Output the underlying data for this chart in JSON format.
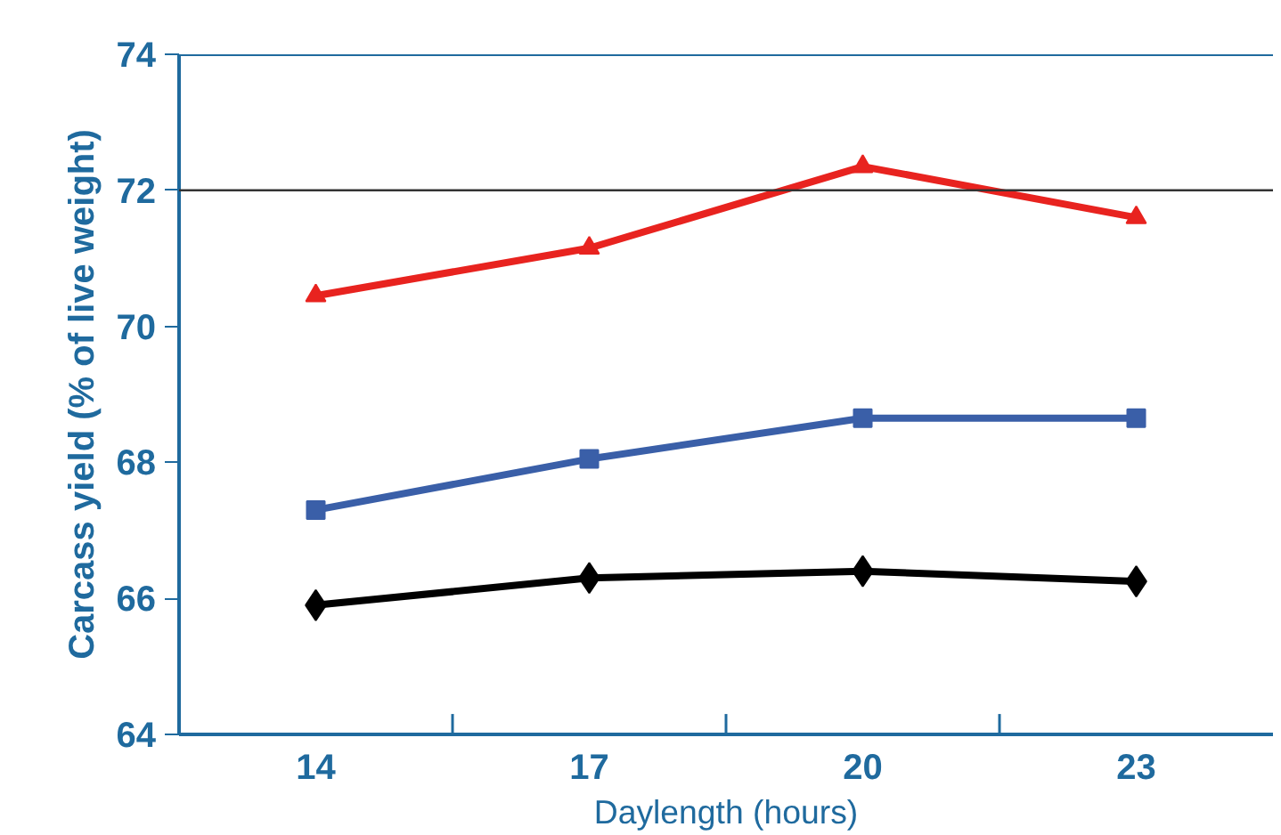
{
  "chart_data": {
    "type": "line",
    "xlabel": "Daylength (hours)",
    "ylabel": "Carcass yield (% of live weight)",
    "categories": [
      "14",
      "17",
      "20",
      "23"
    ],
    "ylim": [
      64,
      74
    ],
    "yticks": [
      64,
      66,
      68,
      70,
      72,
      74
    ],
    "grid": false,
    "line_style": "solid",
    "ref_lines": [
      {
        "axis": "y",
        "value": 72,
        "color": "#333333"
      }
    ],
    "series": [
      {
        "color": "#e8231f",
        "marker": "triangle",
        "values": [
          70.45,
          71.15,
          72.35,
          71.6
        ]
      },
      {
        "color": "#3a5fa8",
        "marker": "square",
        "values": [
          67.3,
          68.05,
          68.65,
          68.65
        ]
      },
      {
        "color": "#000000",
        "marker": "diamond",
        "values": [
          65.9,
          66.3,
          66.4,
          66.25
        ]
      }
    ]
  }
}
